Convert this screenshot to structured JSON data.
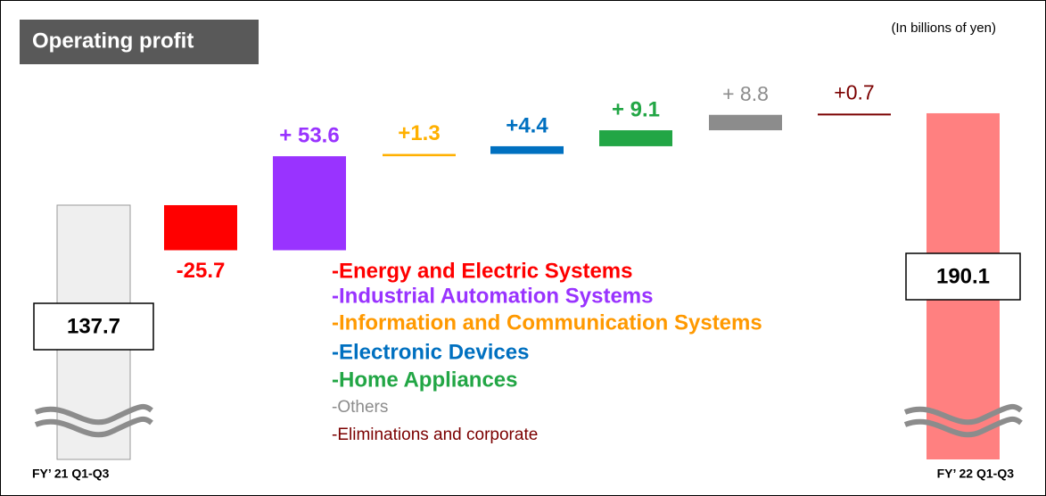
{
  "chart_data": {
    "type": "waterfall",
    "title": "Operating profit",
    "subtitle": "(In billions of yen)",
    "categories": [
      "FY’ 21 Q1-Q3",
      null,
      null,
      null,
      null,
      null,
      null,
      null,
      "FY’ 22 Q1-Q3"
    ],
    "measure": [
      "absolute",
      "relative",
      "relative",
      "relative",
      "relative",
      "relative",
      "relative",
      "relative",
      "absolute"
    ],
    "values": [
      137.7,
      -25.7,
      53.6,
      1.3,
      4.4,
      9.1,
      8.8,
      0.7,
      190.1
    ],
    "value_labels": [
      "137.7",
      "-25.7",
      "+ 53.6",
      "+1.3",
      "+4.4",
      "+ 9.1",
      "+ 8.8",
      "+0.7",
      "190.1"
    ],
    "colors": [
      "#efefef",
      "#ff0000",
      "#9933ff",
      "#ffb000",
      "#0070c0",
      "#22a645",
      "#8c8c8c",
      "#7b0000",
      "#ff8080"
    ],
    "legend": [
      {
        "name": "-Energy and Electric Systems",
        "color": "#ff0000"
      },
      {
        "name": "-Industrial Automation Systems",
        "color": "#9933ff"
      },
      {
        "name": "-Information and Communication Systems",
        "color": "#ff9900"
      },
      {
        "name": "-Electronic Devices",
        "color": "#0070c0"
      },
      {
        "name": "-Home Appliances",
        "color": "#22a645"
      },
      {
        "name": "-Others",
        "color": "#8c8c8c"
      },
      {
        "name": "-Eliminations and corporate",
        "color": "#7b0000"
      }
    ]
  }
}
